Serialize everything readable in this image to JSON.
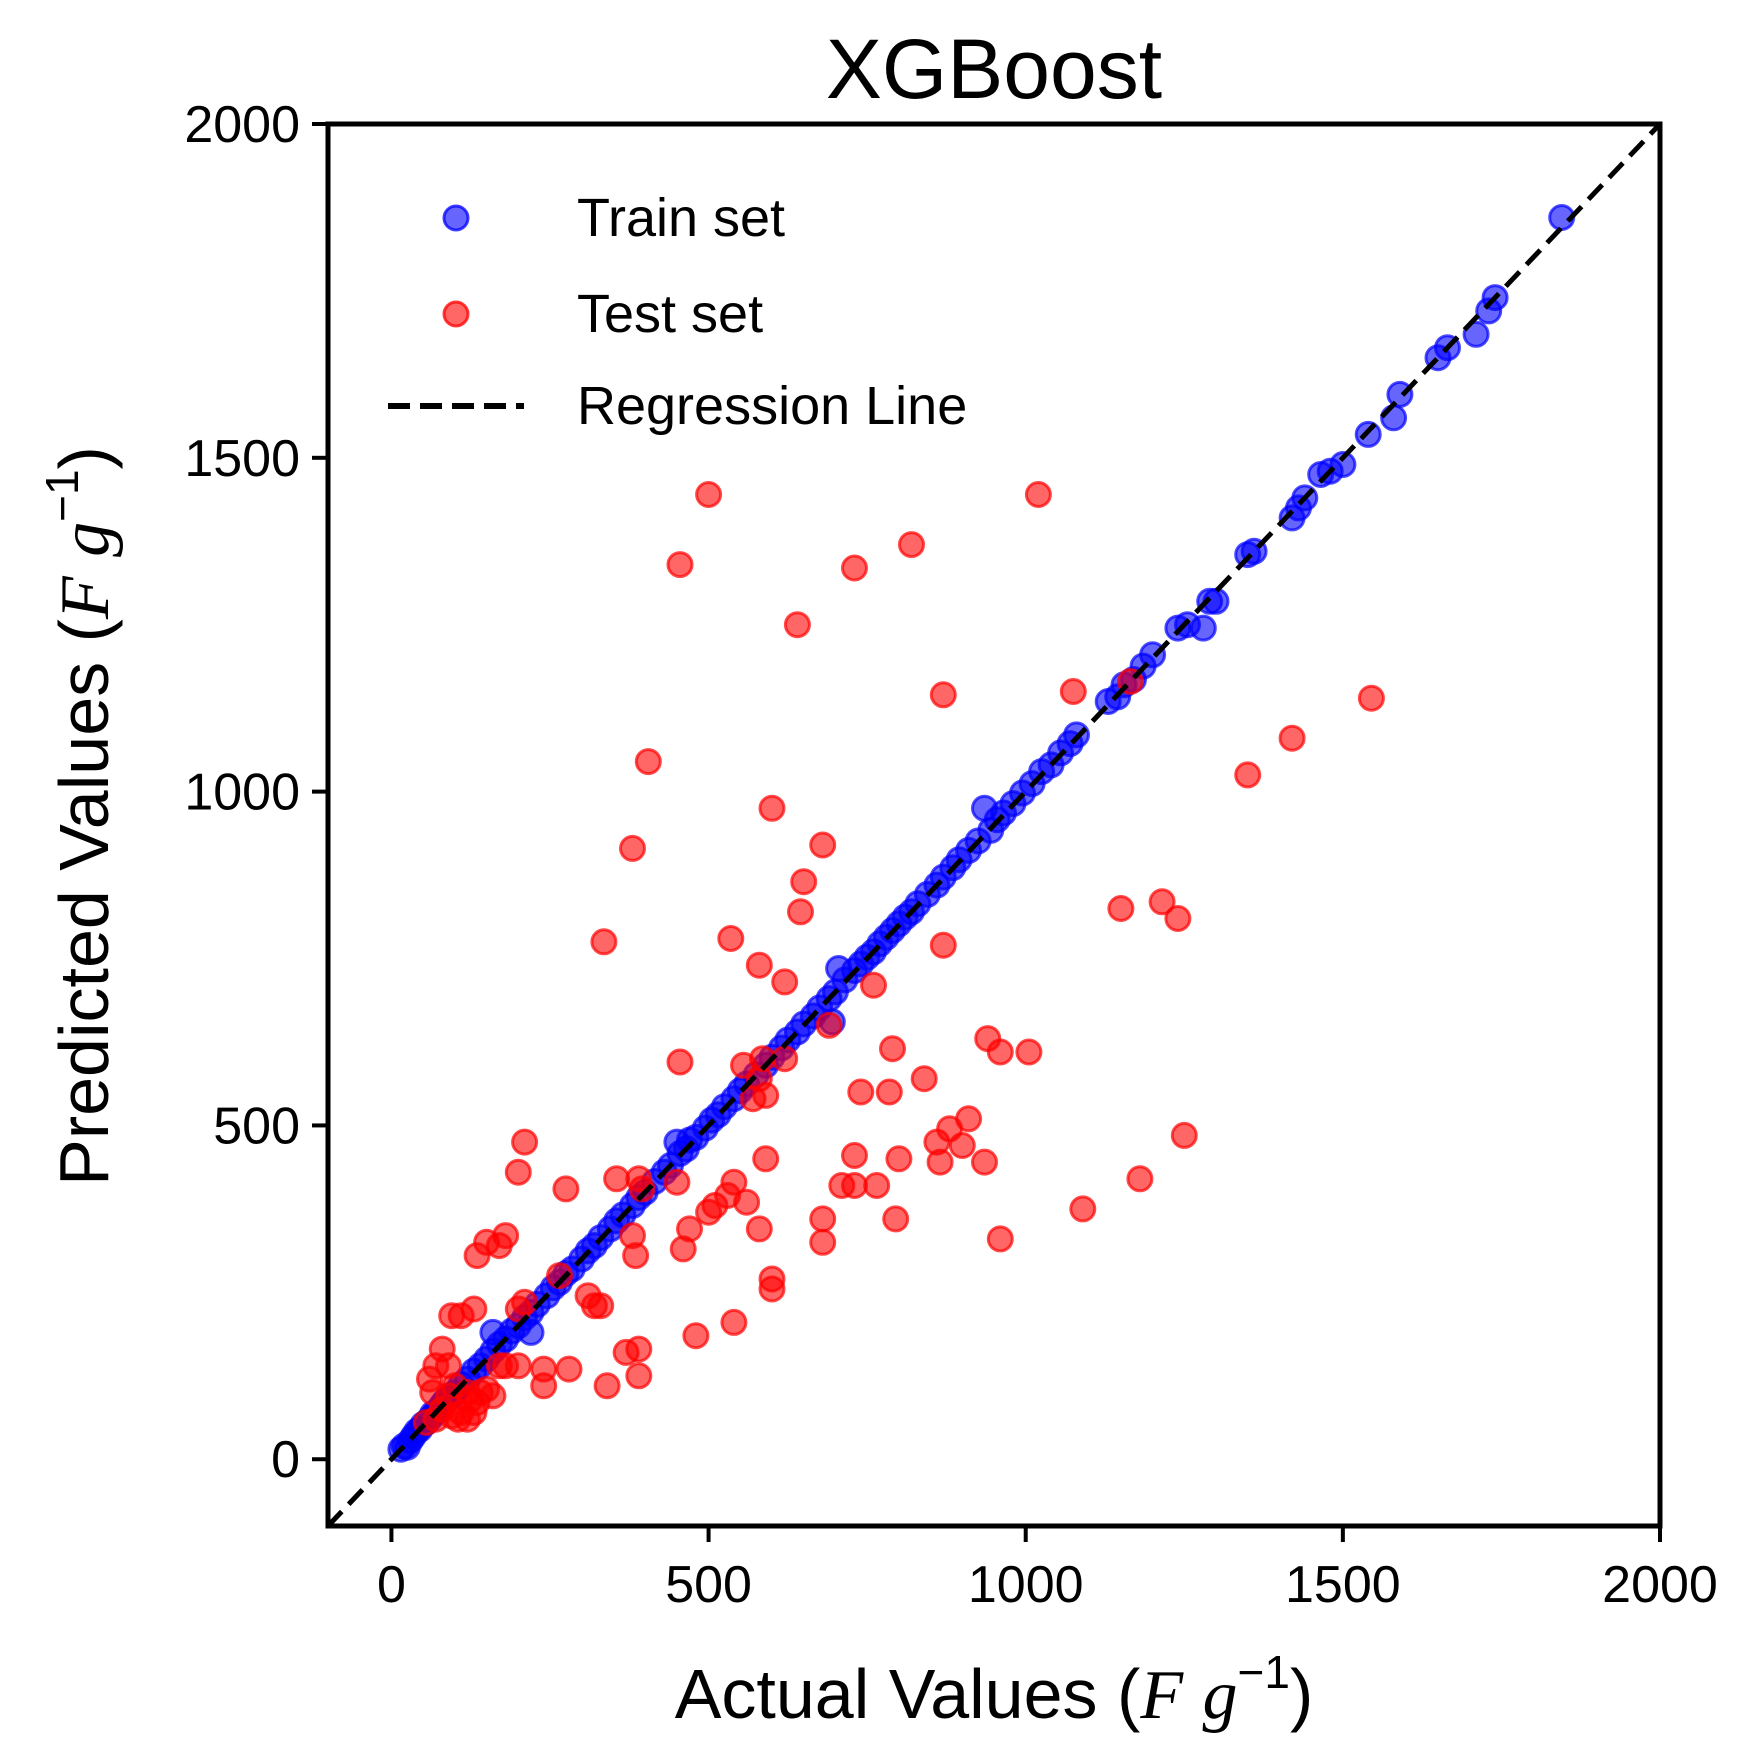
{
  "chart_data": {
    "type": "scatter",
    "title": "XGBoost",
    "xlabel": {
      "prefix": "Actual Values (",
      "var1": "F",
      "var2": "g",
      "sup": "−1",
      "suffix": ")"
    },
    "ylabel": {
      "prefix": "Predicted Values (",
      "var1": "F",
      "var2": "g",
      "sup": "−1",
      "suffix": ")"
    },
    "xlim": [
      -100,
      2000
    ],
    "ylim": [
      -100,
      2000
    ],
    "xticks": [
      0,
      500,
      1000,
      1500,
      2000
    ],
    "yticks": [
      0,
      500,
      1000,
      1500,
      2000
    ],
    "xtick_labels": [
      "0",
      "500",
      "1000",
      "1500",
      "2000"
    ],
    "ytick_labels": [
      "0",
      "500",
      "1000",
      "1500",
      "2000"
    ],
    "grid": false,
    "legend_position": "top-left",
    "regression_line": {
      "name": "Regression Line",
      "from": [
        -100,
        -100
      ],
      "to": [
        2000,
        2000
      ],
      "color": "#000000",
      "style": "dashed"
    },
    "series": [
      {
        "name": "Train set",
        "color": "#0000ff",
        "points": [
          [
            15,
            15
          ],
          [
            20,
            20
          ],
          [
            25,
            18
          ],
          [
            30,
            28
          ],
          [
            35,
            35
          ],
          [
            40,
            42
          ],
          [
            45,
            45
          ],
          [
            50,
            52
          ],
          [
            55,
            55
          ],
          [
            60,
            60
          ],
          [
            65,
            68
          ],
          [
            70,
            70
          ],
          [
            75,
            75
          ],
          [
            80,
            82
          ],
          [
            85,
            88
          ],
          [
            90,
            92
          ],
          [
            95,
            95
          ],
          [
            100,
            100
          ],
          [
            110,
            112
          ],
          [
            120,
            120
          ],
          [
            130,
            132
          ],
          [
            140,
            140
          ],
          [
            150,
            150
          ],
          [
            160,
            162
          ],
          [
            170,
            172
          ],
          [
            180,
            180
          ],
          [
            190,
            192
          ],
          [
            200,
            200
          ],
          [
            210,
            212
          ],
          [
            220,
            220
          ],
          [
            160,
            190
          ],
          [
            220,
            190
          ],
          [
            230,
            232
          ],
          [
            245,
            245
          ],
          [
            255,
            257
          ],
          [
            265,
            265
          ],
          [
            275,
            278
          ],
          [
            285,
            285
          ],
          [
            300,
            300
          ],
          [
            310,
            312
          ],
          [
            320,
            320
          ],
          [
            330,
            332
          ],
          [
            345,
            345
          ],
          [
            355,
            357
          ],
          [
            365,
            366
          ],
          [
            380,
            380
          ],
          [
            390,
            392
          ],
          [
            400,
            400
          ],
          [
            415,
            416
          ],
          [
            430,
            430
          ],
          [
            440,
            440
          ],
          [
            455,
            458
          ],
          [
            465,
            465
          ],
          [
            450,
            475
          ],
          [
            470,
            478
          ],
          [
            480,
            482
          ],
          [
            495,
            496
          ],
          [
            505,
            508
          ],
          [
            515,
            516
          ],
          [
            525,
            528
          ],
          [
            540,
            540
          ],
          [
            550,
            552
          ],
          [
            560,
            562
          ],
          [
            575,
            576
          ],
          [
            590,
            590
          ],
          [
            600,
            602
          ],
          [
            615,
            616
          ],
          [
            625,
            628
          ],
          [
            640,
            640
          ],
          [
            650,
            652
          ],
          [
            665,
            664
          ],
          [
            675,
            676
          ],
          [
            690,
            690
          ],
          [
            700,
            700
          ],
          [
            695,
            655
          ],
          [
            705,
            735
          ],
          [
            715,
            718
          ],
          [
            730,
            732
          ],
          [
            740,
            742
          ],
          [
            750,
            752
          ],
          [
            760,
            760
          ],
          [
            770,
            772
          ],
          [
            780,
            782
          ],
          [
            790,
            792
          ],
          [
            800,
            802
          ],
          [
            810,
            812
          ],
          [
            820,
            820
          ],
          [
            830,
            832
          ],
          [
            845,
            846
          ],
          [
            860,
            860
          ],
          [
            870,
            872
          ],
          [
            885,
            886
          ],
          [
            895,
            898
          ],
          [
            910,
            912
          ],
          [
            925,
            926
          ],
          [
            935,
            975
          ],
          [
            945,
            942
          ],
          [
            955,
            958
          ],
          [
            965,
            968
          ],
          [
            980,
            982
          ],
          [
            995,
            998
          ],
          [
            1010,
            1012
          ],
          [
            1025,
            1030
          ],
          [
            1040,
            1040
          ],
          [
            1055,
            1058
          ],
          [
            1070,
            1072
          ],
          [
            1080,
            1085
          ],
          [
            1130,
            1135
          ],
          [
            1145,
            1142
          ],
          [
            1155,
            1160
          ],
          [
            1170,
            1168
          ],
          [
            1185,
            1188
          ],
          [
            1200,
            1205
          ],
          [
            1240,
            1245
          ],
          [
            1255,
            1250
          ],
          [
            1280,
            1245
          ],
          [
            1290,
            1285
          ],
          [
            1300,
            1285
          ],
          [
            1350,
            1355
          ],
          [
            1360,
            1360
          ],
          [
            1420,
            1410
          ],
          [
            1430,
            1425
          ],
          [
            1440,
            1440
          ],
          [
            1465,
            1475
          ],
          [
            1480,
            1480
          ],
          [
            1500,
            1490
          ],
          [
            1540,
            1535
          ],
          [
            1580,
            1560
          ],
          [
            1590,
            1595
          ],
          [
            1650,
            1650
          ],
          [
            1665,
            1665
          ],
          [
            1710,
            1685
          ],
          [
            1730,
            1720
          ],
          [
            1740,
            1740
          ],
          [
            1845,
            1860
          ]
        ]
      },
      {
        "name": "Test set",
        "color": "#ff0000",
        "points": [
          [
            500,
            1445
          ],
          [
            1020,
            1445
          ],
          [
            455,
            1340
          ],
          [
            730,
            1335
          ],
          [
            820,
            1370
          ],
          [
            640,
            1250
          ],
          [
            870,
            1145
          ],
          [
            1075,
            1150
          ],
          [
            1165,
            1165
          ],
          [
            1545,
            1140
          ],
          [
            405,
            1045
          ],
          [
            1420,
            1080
          ],
          [
            1350,
            1025
          ],
          [
            600,
            975
          ],
          [
            380,
            915
          ],
          [
            680,
            920
          ],
          [
            650,
            865
          ],
          [
            645,
            820
          ],
          [
            1150,
            825
          ],
          [
            1215,
            835
          ],
          [
            1240,
            810
          ],
          [
            335,
            775
          ],
          [
            535,
            780
          ],
          [
            870,
            770
          ],
          [
            580,
            740
          ],
          [
            620,
            715
          ],
          [
            760,
            710
          ],
          [
            690,
            650
          ],
          [
            790,
            615
          ],
          [
            455,
            595
          ],
          [
            940,
            630
          ],
          [
            960,
            610
          ],
          [
            1005,
            610
          ],
          [
            555,
            590
          ],
          [
            585,
            600
          ],
          [
            620,
            600
          ],
          [
            580,
            570
          ],
          [
            740,
            550
          ],
          [
            785,
            550
          ],
          [
            840,
            570
          ],
          [
            570,
            540
          ],
          [
            590,
            545
          ],
          [
            210,
            475
          ],
          [
            860,
            475
          ],
          [
            880,
            495
          ],
          [
            900,
            470
          ],
          [
            910,
            510
          ],
          [
            590,
            450
          ],
          [
            730,
            455
          ],
          [
            800,
            450
          ],
          [
            865,
            445
          ],
          [
            935,
            445
          ],
          [
            1250,
            485
          ],
          [
            200,
            430
          ],
          [
            275,
            405
          ],
          [
            355,
            420
          ],
          [
            390,
            420
          ],
          [
            395,
            405
          ],
          [
            450,
            415
          ],
          [
            540,
            415
          ],
          [
            710,
            410
          ],
          [
            730,
            410
          ],
          [
            765,
            410
          ],
          [
            510,
            380
          ],
          [
            500,
            370
          ],
          [
            530,
            395
          ],
          [
            560,
            385
          ],
          [
            1090,
            375
          ],
          [
            1180,
            420
          ],
          [
            795,
            360
          ],
          [
            680,
            360
          ],
          [
            580,
            345
          ],
          [
            470,
            345
          ],
          [
            135,
            305
          ],
          [
            150,
            325
          ],
          [
            170,
            320
          ],
          [
            180,
            335
          ],
          [
            380,
            335
          ],
          [
            960,
            330
          ],
          [
            680,
            325
          ],
          [
            460,
            315
          ],
          [
            385,
            305
          ],
          [
            265,
            275
          ],
          [
            600,
            270
          ],
          [
            600,
            255
          ],
          [
            310,
            245
          ],
          [
            320,
            230
          ],
          [
            330,
            230
          ],
          [
            540,
            205
          ],
          [
            480,
            185
          ],
          [
            130,
            225
          ],
          [
            200,
            225
          ],
          [
            210,
            235
          ],
          [
            95,
            215
          ],
          [
            110,
            215
          ],
          [
            370,
            160
          ],
          [
            390,
            165
          ],
          [
            80,
            165
          ],
          [
            90,
            140
          ],
          [
            70,
            140
          ],
          [
            60,
            120
          ],
          [
            65,
            100
          ],
          [
            90,
            95
          ],
          [
            100,
            110
          ],
          [
            120,
            100
          ],
          [
            125,
            90
          ],
          [
            135,
            85
          ],
          [
            140,
            100
          ],
          [
            150,
            105
          ],
          [
            170,
            140
          ],
          [
            180,
            140
          ],
          [
            200,
            140
          ],
          [
            240,
            135
          ],
          [
            280,
            135
          ],
          [
            240,
            110
          ],
          [
            340,
            110
          ],
          [
            390,
            125
          ],
          [
            160,
            95
          ],
          [
            110,
            70
          ],
          [
            95,
            65
          ],
          [
            80,
            75
          ],
          [
            70,
            60
          ],
          [
            120,
            60
          ],
          [
            130,
            70
          ],
          [
            105,
            60
          ],
          [
            55,
            55
          ]
        ]
      }
    ]
  }
}
